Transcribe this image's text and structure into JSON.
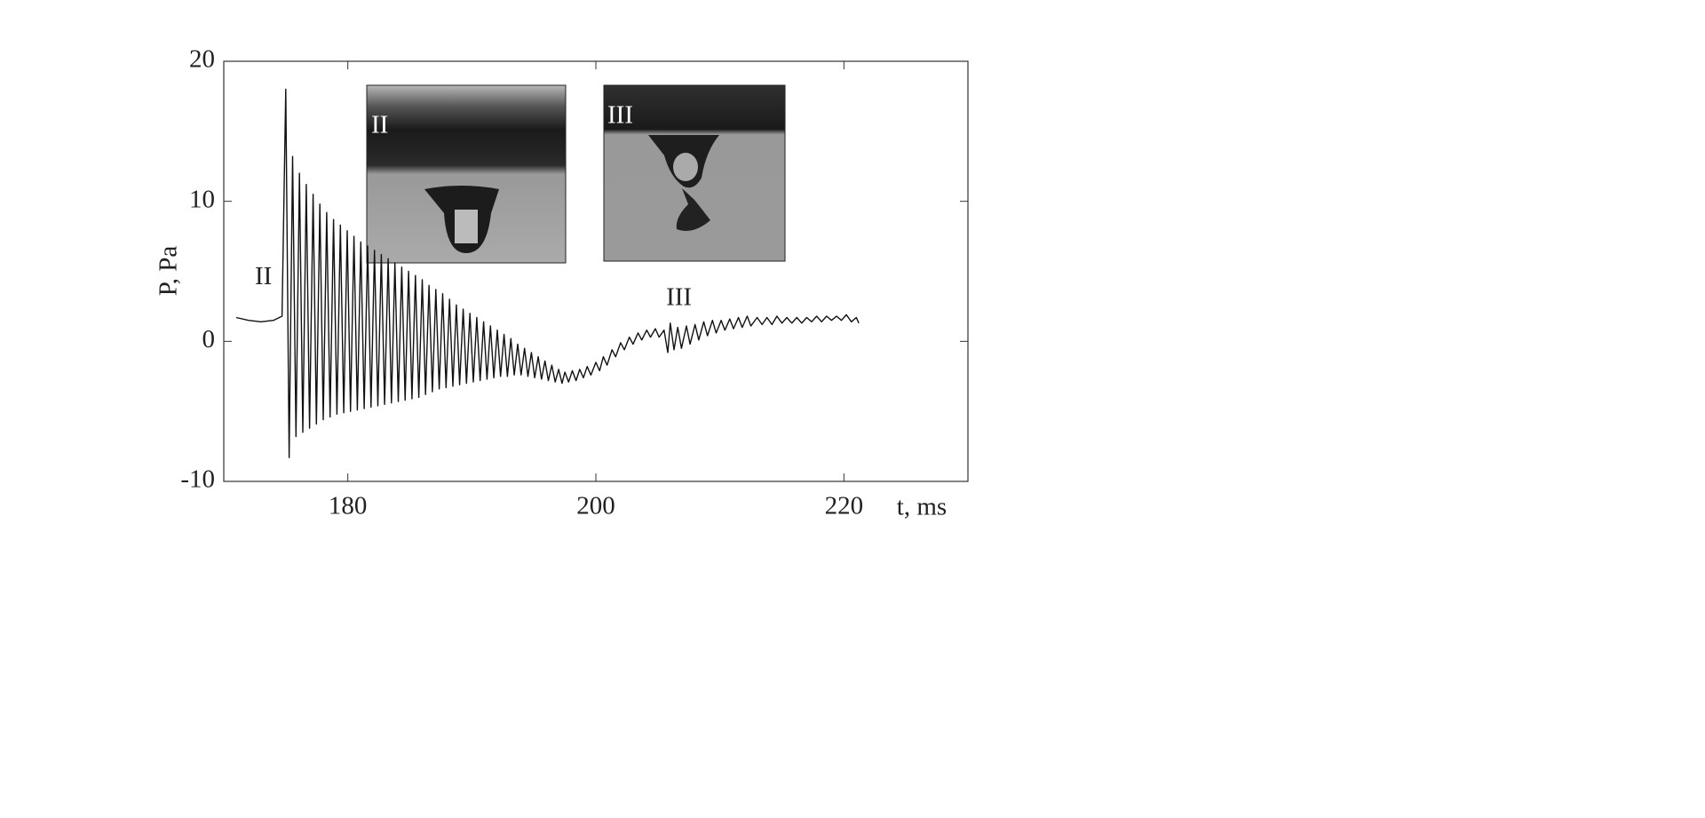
{
  "chart_data": {
    "type": "line",
    "xlabel": "t, ms",
    "ylabel": "P, Pa",
    "xlim": [
      170,
      230
    ],
    "ylim": [
      -10,
      20
    ],
    "xticks": [
      180,
      200,
      220
    ],
    "yticks": [
      -10,
      0,
      10,
      20
    ],
    "annotations": [
      {
        "text": "II",
        "x": 173.2,
        "y": 4.5
      },
      {
        "text": "III",
        "x": 206.7,
        "y": 3
      }
    ],
    "insets": [
      {
        "label": "II"
      },
      {
        "label": "III"
      }
    ],
    "series": [
      {
        "color": "#111111",
        "x": [
          171,
          172,
          173,
          174,
          174.7,
          175.0,
          175.27,
          175.55,
          175.82,
          176.1,
          176.37,
          176.65,
          176.92,
          177.2,
          177.47,
          177.75,
          178.02,
          178.3,
          178.57,
          178.85,
          179.12,
          179.4,
          179.67,
          179.95,
          180.22,
          180.5,
          180.77,
          181.05,
          181.32,
          181.6,
          181.87,
          182.15,
          182.42,
          182.7,
          182.97,
          183.25,
          183.52,
          183.8,
          184.07,
          184.35,
          184.62,
          184.9,
          185.17,
          185.45,
          185.72,
          186.0,
          186.27,
          186.55,
          186.82,
          187.1,
          187.37,
          187.65,
          187.92,
          188.2,
          188.47,
          188.75,
          189.02,
          189.3,
          189.57,
          189.85,
          190.12,
          190.4,
          190.67,
          190.95,
          191.22,
          191.5,
          191.77,
          192.05,
          192.32,
          192.6,
          192.87,
          193.15,
          193.42,
          193.7,
          193.97,
          194.25,
          194.52,
          194.8,
          195.07,
          195.35,
          195.62,
          195.9,
          196.17,
          196.45,
          196.72,
          197.0,
          197.27,
          197.5,
          197.8,
          198.1,
          198.4,
          198.7,
          199.0,
          199.3,
          199.6,
          200,
          200.3,
          200.6,
          200.9,
          201.3,
          201.6,
          202,
          202.3,
          202.7,
          203,
          203.4,
          203.7,
          204.1,
          204.4,
          204.8,
          205.1,
          205.5,
          205.8,
          206,
          206.3,
          206.6,
          206.9,
          207.3,
          207.6,
          208,
          208.3,
          208.7,
          209,
          209.4,
          209.7,
          210.1,
          210.4,
          210.8,
          211.1,
          211.5,
          211.8,
          212.2,
          212.5,
          213,
          213.4,
          213.8,
          214.2,
          214.6,
          215,
          215.4,
          215.8,
          216.2,
          216.6,
          217,
          217.4,
          217.8,
          218.2,
          218.6,
          219,
          219.4,
          219.8,
          220.2,
          220.6,
          221,
          221.2
        ],
        "values": [
          1.7,
          1.5,
          1.4,
          1.5,
          1.8,
          18,
          -8.3,
          13.2,
          -6.8,
          12,
          -6.5,
          11.2,
          -6.2,
          10.5,
          -5.9,
          9.8,
          -5.6,
          9.2,
          -5.4,
          8.7,
          -5.2,
          8.3,
          -5.1,
          7.9,
          -5.0,
          7.5,
          -4.9,
          7.1,
          -4.8,
          6.8,
          -4.7,
          6.5,
          -4.6,
          6.2,
          -4.5,
          5.9,
          -4.4,
          5.6,
          -4.3,
          5.3,
          -4.2,
          5.0,
          -4.1,
          4.7,
          -4.0,
          4.4,
          -3.8,
          4.0,
          -3.6,
          3.7,
          -3.4,
          3.4,
          -3.3,
          3.0,
          -3.2,
          2.6,
          -3.1,
          2.3,
          -3.0,
          2.0,
          -2.9,
          1.7,
          -2.8,
          1.4,
          -2.7,
          1.1,
          -2.6,
          0.8,
          -2.5,
          0.5,
          -2.5,
          0.2,
          -2.4,
          -0.2,
          -2.4,
          -0.5,
          -2.5,
          -0.8,
          -2.6,
          -1.1,
          -2.7,
          -1.4,
          -2.8,
          -1.7,
          -2.9,
          -2.0,
          -3.0,
          -2.2,
          -2.9,
          -2.1,
          -2.8,
          -2.0,
          -2.6,
          -1.8,
          -2.4,
          -1.5,
          -2.1,
          -1.1,
          -1.7,
          -0.6,
          -1.1,
          -0.1,
          -0.6,
          0.3,
          -0.2,
          0.6,
          0.1,
          0.8,
          0.3,
          0.9,
          0.3,
          0.8,
          -0.8,
          1.3,
          -0.6,
          1.0,
          -0.5,
          1.1,
          -0.2,
          1.2,
          0.1,
          1.4,
          0.4,
          1.5,
          0.6,
          1.5,
          0.8,
          1.6,
          0.9,
          1.7,
          1.0,
          1.8,
          1.1,
          1.7,
          1.2,
          1.7,
          1.2,
          1.8,
          1.3,
          1.7,
          1.3,
          1.7,
          1.3,
          1.7,
          1.4,
          1.8,
          1.4,
          1.8,
          1.5,
          1.8,
          1.5,
          1.9,
          1.4,
          1.7,
          1.3
        ]
      }
    ]
  }
}
